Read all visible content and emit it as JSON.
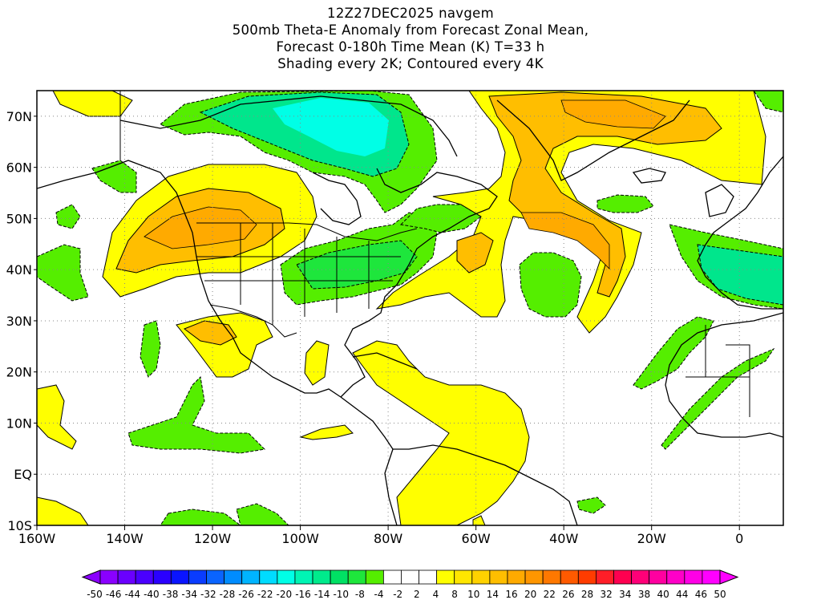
{
  "title": {
    "line1": "12Z27DEC2025 navgem",
    "line2": "500mb Theta-E Anomaly from Forecast Zonal Mean,",
    "line3": "Forecast 0-180h Time Mean (K) T=33 h",
    "line4": "Shading every 2K; Contoured every 4K"
  },
  "map": {
    "lon_range": [
      -160,
      10
    ],
    "lat_range": [
      -10,
      75
    ],
    "lon_ticks": [
      "160W",
      "140W",
      "120W",
      "100W",
      "80W",
      "60W",
      "40W",
      "20W",
      "0"
    ],
    "lat_ticks": [
      "70N",
      "60N",
      "50N",
      "40N",
      "30N",
      "20N",
      "10N",
      "EQ",
      "10S"
    ],
    "grid": "dotted every 10 degrees"
  },
  "colorbar": {
    "labels": [
      "-50",
      "-46",
      "-44",
      "-40",
      "-38",
      "-34",
      "-32",
      "-28",
      "-26",
      "-22",
      "-20",
      "-16",
      "-14",
      "-10",
      "-8",
      "-4",
      "-2",
      "2",
      "4",
      "8",
      "10",
      "14",
      "16",
      "20",
      "22",
      "26",
      "28",
      "32",
      "34",
      "38",
      "40",
      "44",
      "46",
      "50"
    ],
    "colors": [
      "#8a00ff",
      "#6a00ff",
      "#4a00ff",
      "#2a00ff",
      "#0a14ff",
      "#0a3cff",
      "#0a64ff",
      "#008cff",
      "#00b4ff",
      "#00dcff",
      "#00ffe6",
      "#00f5b4",
      "#00eb8c",
      "#00e164",
      "#1ee63c",
      "#55ee00",
      "#ffffff",
      "#ffffff",
      "#ffffff",
      "#ffff00",
      "#ffe600",
      "#ffd200",
      "#ffbe00",
      "#ffaa00",
      "#ff9600",
      "#ff7800",
      "#ff5a00",
      "#ff3c00",
      "#ff1e28",
      "#ff0050",
      "#ff0078",
      "#ff00a0",
      "#ff00c8",
      "#ff00e6",
      "#ff00ff"
    ],
    "under_color": "#8a00ff",
    "over_color": "#ff00ff"
  }
}
